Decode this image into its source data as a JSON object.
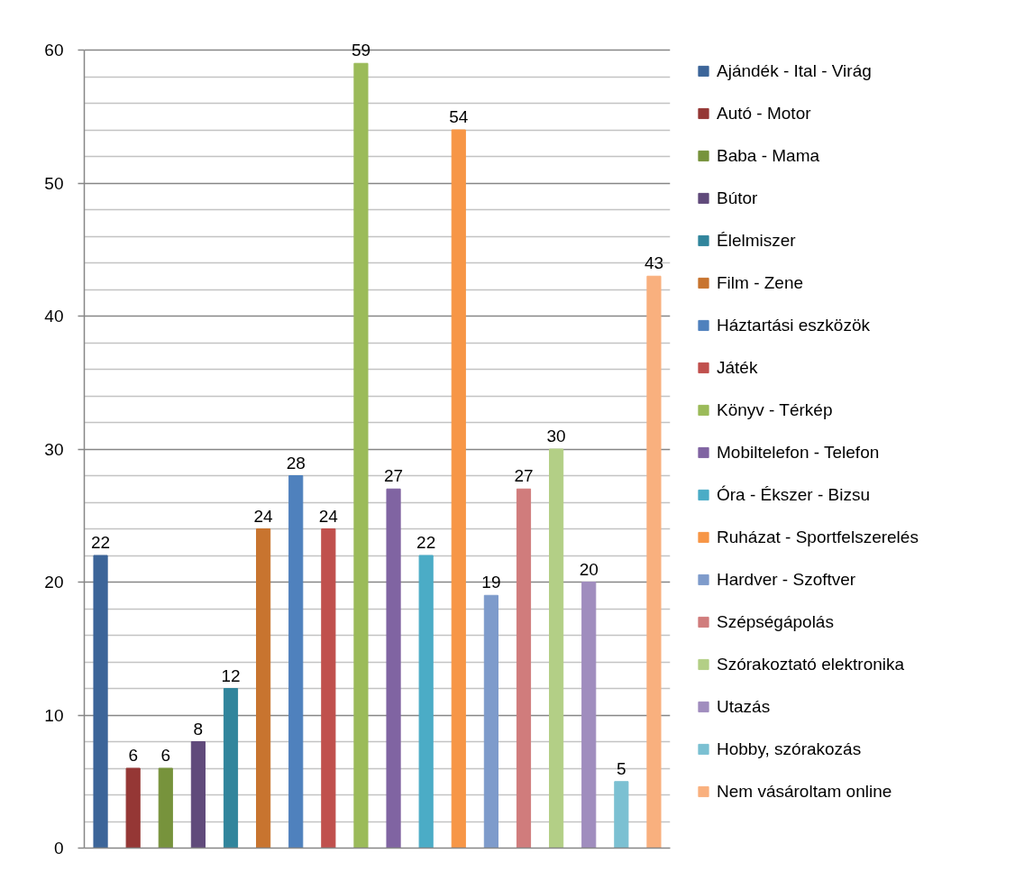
{
  "chart_data": {
    "type": "bar",
    "categories": [
      null,
      null,
      null,
      null,
      null,
      null,
      null,
      null,
      null,
      null,
      null,
      null,
      null,
      null,
      null,
      null,
      null,
      null
    ],
    "series": [
      {
        "name": "Ajándék - Ital - Virág",
        "color": "#3c6599",
        "values": [
          22,
          null,
          null,
          null,
          null,
          null,
          null,
          null,
          null,
          null,
          null,
          null,
          null,
          null,
          null,
          null,
          null,
          null
        ]
      },
      {
        "name": "Autó - Motor",
        "color": "#953735",
        "values": [
          null,
          6,
          null,
          null,
          null,
          null,
          null,
          null,
          null,
          null,
          null,
          null,
          null,
          null,
          null,
          null,
          null,
          null
        ]
      },
      {
        "name": "Baba - Mama",
        "color": "#77933c",
        "values": [
          null,
          null,
          6,
          null,
          null,
          null,
          null,
          null,
          null,
          null,
          null,
          null,
          null,
          null,
          null,
          null,
          null,
          null
        ]
      },
      {
        "name": "Bútor",
        "color": "#604a7b",
        "values": [
          null,
          null,
          null,
          8,
          null,
          null,
          null,
          null,
          null,
          null,
          null,
          null,
          null,
          null,
          null,
          null,
          null,
          null
        ]
      },
      {
        "name": "Élelmiszer",
        "color": "#31859c",
        "values": [
          null,
          null,
          null,
          null,
          12,
          null,
          null,
          null,
          null,
          null,
          null,
          null,
          null,
          null,
          null,
          null,
          null,
          null
        ]
      },
      {
        "name": "Film - Zene",
        "color": "#c8742f",
        "values": [
          null,
          null,
          null,
          null,
          null,
          24,
          null,
          null,
          null,
          null,
          null,
          null,
          null,
          null,
          null,
          null,
          null,
          null
        ]
      },
      {
        "name": "Háztartási eszközök",
        "color": "#4f81bd",
        "values": [
          null,
          null,
          null,
          null,
          null,
          null,
          28,
          null,
          null,
          null,
          null,
          null,
          null,
          null,
          null,
          null,
          null,
          null
        ]
      },
      {
        "name": "Játék",
        "color": "#c0504d",
        "values": [
          null,
          null,
          null,
          null,
          null,
          null,
          null,
          24,
          null,
          null,
          null,
          null,
          null,
          null,
          null,
          null,
          null,
          null
        ]
      },
      {
        "name": "Könyv - Térkép",
        "color": "#9bbb59",
        "values": [
          null,
          null,
          null,
          null,
          null,
          null,
          null,
          null,
          59,
          null,
          null,
          null,
          null,
          null,
          null,
          null,
          null,
          null
        ]
      },
      {
        "name": "Mobiltelefon - Telefon",
        "color": "#8064a2",
        "values": [
          null,
          null,
          null,
          null,
          null,
          null,
          null,
          null,
          null,
          27,
          null,
          null,
          null,
          null,
          null,
          null,
          null,
          null
        ]
      },
      {
        "name": "Óra - Ékszer - Bizsu",
        "color": "#4bacc6",
        "values": [
          null,
          null,
          null,
          null,
          null,
          null,
          null,
          null,
          null,
          null,
          22,
          null,
          null,
          null,
          null,
          null,
          null,
          null
        ]
      },
      {
        "name": "Ruházat - Sportfelszerelés",
        "color": "#f79646",
        "values": [
          null,
          null,
          null,
          null,
          null,
          null,
          null,
          null,
          null,
          null,
          null,
          54,
          null,
          null,
          null,
          null,
          null,
          null
        ]
      },
      {
        "name": "Hardver - Szoftver",
        "color": "#7e9bcb",
        "values": [
          null,
          null,
          null,
          null,
          null,
          null,
          null,
          null,
          null,
          null,
          null,
          null,
          19,
          null,
          null,
          null,
          null,
          null
        ]
      },
      {
        "name": "Szépségápolás",
        "color": "#d07c7c",
        "values": [
          null,
          null,
          null,
          null,
          null,
          null,
          null,
          null,
          null,
          null,
          null,
          null,
          null,
          27,
          null,
          null,
          null,
          null
        ]
      },
      {
        "name": "Szórakoztató elektronika",
        "color": "#b3cf86",
        "values": [
          null,
          null,
          null,
          null,
          null,
          null,
          null,
          null,
          null,
          null,
          null,
          null,
          null,
          null,
          30,
          null,
          null,
          null
        ]
      },
      {
        "name": "Utazás",
        "color": "#a08dbe",
        "values": [
          null,
          null,
          null,
          null,
          null,
          null,
          null,
          null,
          null,
          null,
          null,
          null,
          null,
          null,
          null,
          20,
          null,
          null
        ]
      },
      {
        "name": "Hobby, szórakozás",
        "color": "#7bc0d2",
        "values": [
          null,
          null,
          null,
          null,
          null,
          null,
          null,
          null,
          null,
          null,
          null,
          null,
          null,
          null,
          null,
          null,
          5,
          null
        ]
      },
      {
        "name": "Nem vásároltam online",
        "color": "#f9b07e",
        "values": [
          null,
          null,
          null,
          null,
          null,
          null,
          null,
          null,
          null,
          null,
          null,
          null,
          null,
          null,
          null,
          null,
          null,
          43
        ]
      }
    ],
    "ylim": [
      0,
      60
    ],
    "yticks": [
      0,
      {
        "value": 2,
        "label": null
      },
      {
        "value": 4,
        "label": null
      },
      {
        "value": 6,
        "label": null
      },
      {
        "value": 8,
        "label": null
      },
      10,
      {
        "value": 12,
        "label": null
      },
      {
        "value": 14,
        "label": null
      },
      {
        "value": 16,
        "label": null
      },
      {
        "value": 18,
        "label": null
      },
      20,
      {
        "value": 22,
        "label": null
      },
      {
        "value": 24,
        "label": null
      },
      {
        "value": 26,
        "label": null
      },
      {
        "value": 28,
        "label": null
      },
      30,
      {
        "value": 32,
        "label": null
      },
      {
        "value": 34,
        "label": null
      },
      {
        "value": 36,
        "label": null
      },
      {
        "value": 38,
        "label": null
      },
      40,
      {
        "value": 42,
        "label": null
      },
      {
        "value": 44,
        "label": null
      },
      {
        "value": 46,
        "label": null
      },
      {
        "value": 48,
        "label": null
      },
      50,
      {
        "value": 52,
        "label": null
      },
      {
        "value": 54,
        "label": null
      },
      {
        "value": 56,
        "label": null
      },
      {
        "value": 58,
        "label": null
      },
      60
    ],
    "grid": "y",
    "legend": "right",
    "data_labels": true,
    "tick_labels": "y"
  }
}
